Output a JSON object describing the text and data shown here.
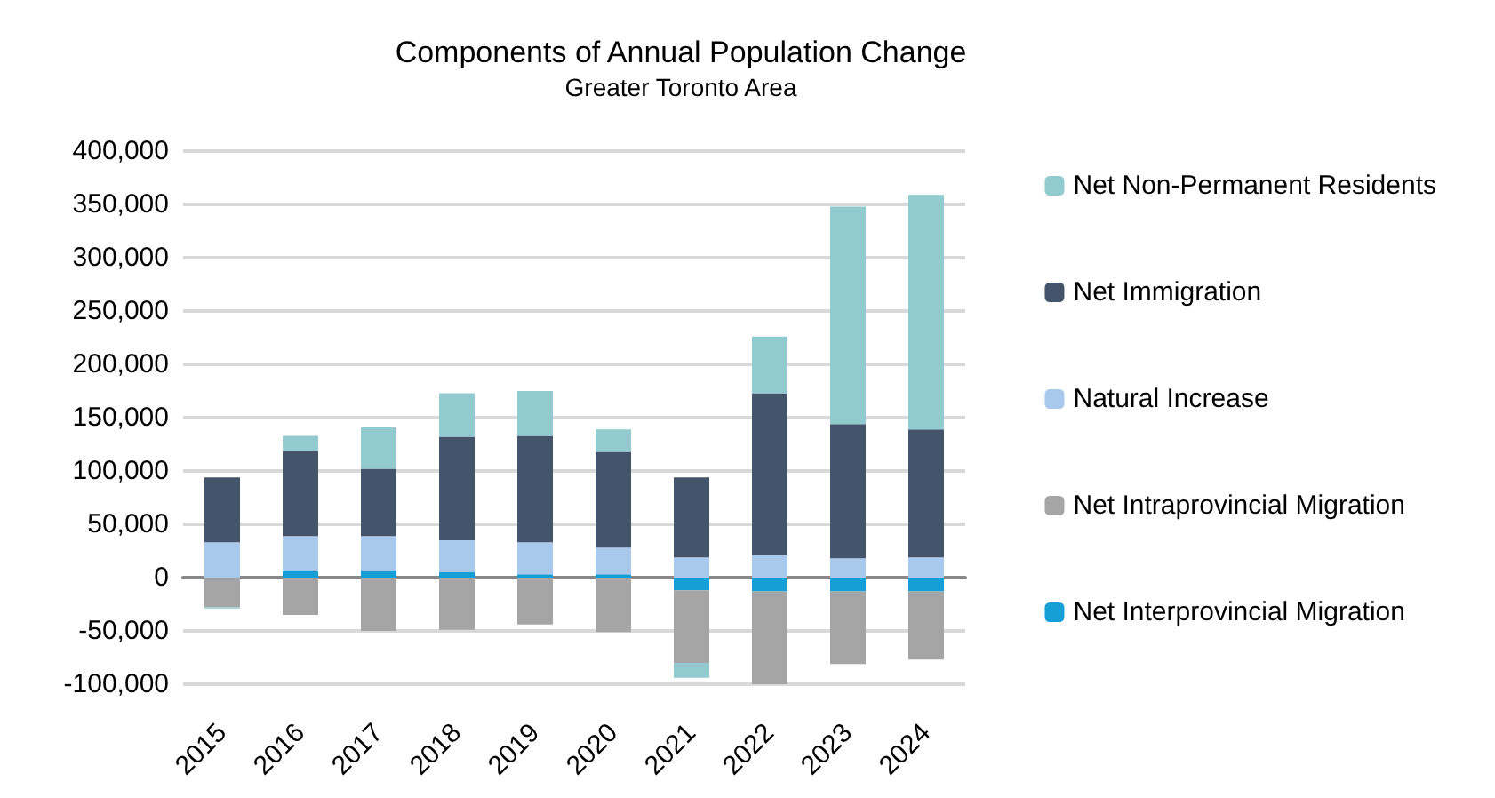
{
  "chart_data": {
    "type": "bar",
    "title": "Components of Annual Population Change",
    "subtitle": "Greater Toronto Area",
    "stacked": true,
    "categories": [
      "2015",
      "2016",
      "2017",
      "2018",
      "2019",
      "2020",
      "2021",
      "2022",
      "2023",
      "2024"
    ],
    "series": [
      {
        "name": "Net Interprovincial Migration",
        "color": "#159fd6",
        "values": [
          0,
          6000,
          7000,
          5000,
          3000,
          3000,
          -12000,
          -13000,
          -13000,
          -13000
        ]
      },
      {
        "name": "Net Intraprovincial Migration",
        "color": "#a5a5a5",
        "values": [
          -28000,
          -35000,
          -50000,
          -49000,
          -44000,
          -51000,
          -68000,
          -90000,
          -68000,
          -64000
        ]
      },
      {
        "name": "Natural Increase",
        "color": "#a8c9ec",
        "values": [
          33000,
          33000,
          32000,
          30000,
          30000,
          25000,
          19000,
          21000,
          18000,
          19000
        ]
      },
      {
        "name": "Net Immigration",
        "color": "#44546a",
        "values": [
          61000,
          80000,
          63000,
          97000,
          100000,
          90000,
          75000,
          152000,
          126000,
          120000
        ]
      },
      {
        "name": "Net Non-Permanent Residents",
        "color": "#92cbcf",
        "values": [
          -1000,
          14000,
          39000,
          41000,
          42000,
          21000,
          -14000,
          53000,
          204000,
          220000
        ]
      }
    ],
    "ylim": [
      -100000,
      400000
    ],
    "yticks": [
      {
        "value": -100000,
        "label": "-100,000"
      },
      {
        "value": -50000,
        "label": "-50,000"
      },
      0,
      {
        "value": 50000,
        "label": "50,000"
      },
      {
        "value": 100000,
        "label": "100,000"
      },
      {
        "value": 150000,
        "label": "150,000"
      },
      {
        "value": 200000,
        "label": "200,000"
      },
      {
        "value": 250000,
        "label": "250,000"
      },
      {
        "value": 300000,
        "label": "300,000"
      },
      {
        "value": 350000,
        "label": "350,000"
      },
      {
        "value": 400000,
        "label": "400,000"
      }
    ],
    "grid": "y",
    "legend": "right"
  }
}
